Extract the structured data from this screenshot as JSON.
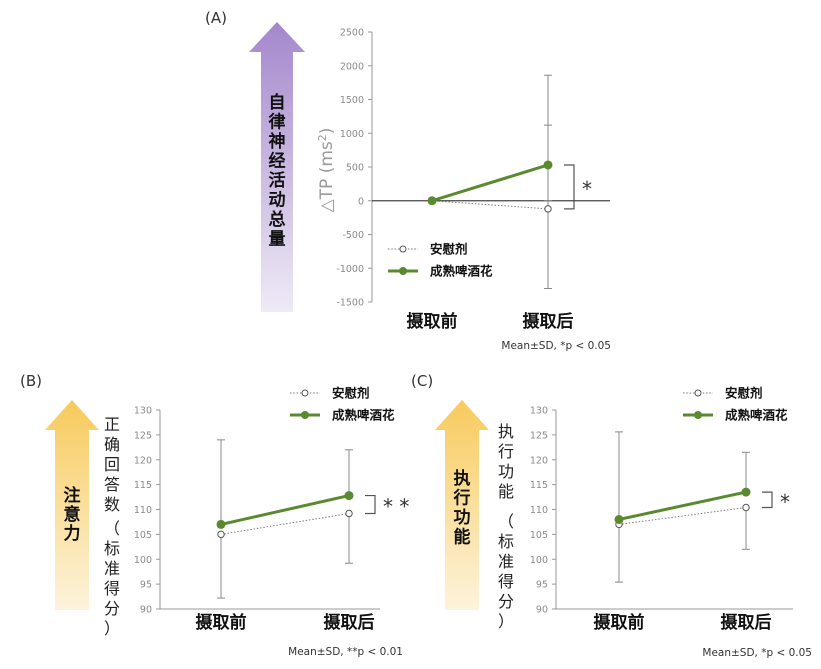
{
  "colors": {
    "green": "#5a8a2f",
    "placebo": "#7a7a7a",
    "axis": "#999999",
    "tick_label": "#8a8a8a",
    "purple_top": "#a487cc",
    "purple_bottom": "#efeaf6",
    "yellow_top": "#f7ca5c",
    "yellow_bottom": "#fdf3dc"
  },
  "chart_data": [
    {
      "type": "line",
      "panel_label": "(A)",
      "arrow_label": "自律神经活动总量",
      "ylabel": "△TP (ms²)",
      "ylim": [
        -1500,
        2500
      ],
      "yticks": [
        2500,
        2000,
        1500,
        1000,
        500,
        0,
        -500,
        -1000,
        -1500
      ],
      "categories": [
        "摄取前",
        "摄取后"
      ],
      "series": [
        {
          "name": "安慰剂",
          "values": [
            0,
            -120
          ],
          "error_minus": [
            0,
            1180
          ],
          "error_plus": [
            0,
            1240
          ]
        },
        {
          "name": "成熟啤酒花",
          "values": [
            0,
            530
          ],
          "error_minus": [
            0,
            530
          ],
          "error_plus": [
            0,
            1330
          ]
        }
      ],
      "significance": "*",
      "footnote": "Mean±SD, *p < 0.05"
    },
    {
      "type": "line",
      "panel_label": "(B)",
      "arrow_label": "注意力",
      "ylabel": "正确回答数（标准得分）",
      "ylim": [
        90,
        130
      ],
      "yticks": [
        130,
        125,
        120,
        115,
        110,
        105,
        100,
        95,
        90
      ],
      "categories": [
        "摄取前",
        "摄取后"
      ],
      "series": [
        {
          "name": "安慰剂",
          "values": [
            105,
            109.2
          ],
          "error_minus": [
            12.8,
            10
          ],
          "error_plus": [
            0,
            0
          ]
        },
        {
          "name": "成熟啤酒花",
          "values": [
            107,
            112.8
          ],
          "error_minus": [
            0,
            0
          ],
          "error_plus": [
            17,
            9.2
          ]
        }
      ],
      "significance": "**",
      "footnote": "Mean±SD, **p < 0.01"
    },
    {
      "type": "line",
      "panel_label": "(C)",
      "arrow_label": "执行功能",
      "ylabel": "执行功能（标准得分）",
      "ylim": [
        90,
        130
      ],
      "yticks": [
        130,
        125,
        120,
        115,
        110,
        105,
        100,
        95,
        90
      ],
      "categories": [
        "摄取前",
        "摄取后"
      ],
      "series": [
        {
          "name": "安慰剂",
          "values": [
            107,
            110.4
          ],
          "error_minus": [
            11.6,
            8.4
          ],
          "error_plus": [
            0,
            0
          ]
        },
        {
          "name": "成熟啤酒花",
          "values": [
            108,
            113.5
          ],
          "error_minus": [
            0,
            0
          ],
          "error_plus": [
            17.6,
            8
          ]
        }
      ],
      "significance": "*",
      "footnote": "Mean±SD, *p < 0.05"
    }
  ]
}
